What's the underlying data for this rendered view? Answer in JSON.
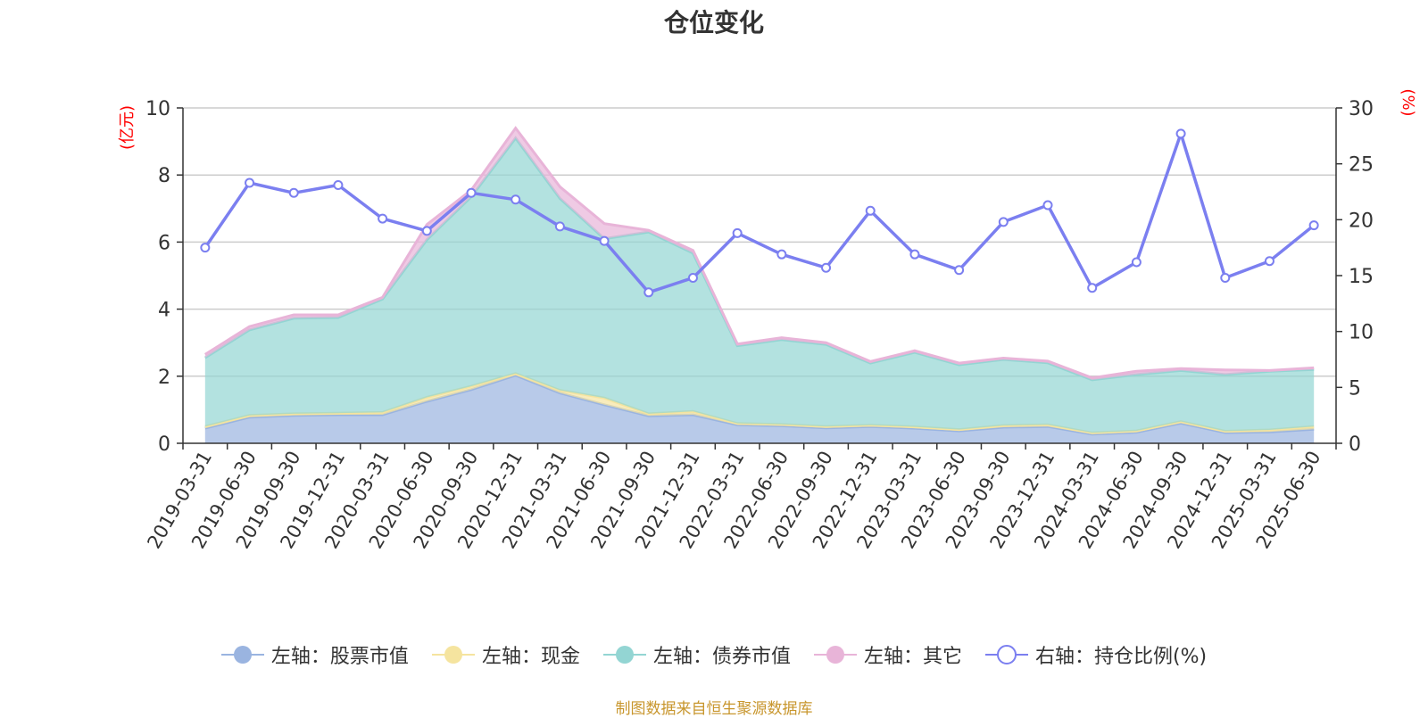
{
  "chart_data": {
    "type": "area",
    "title": "仓位变化",
    "left_axis_unit": "(亿元)",
    "right_axis_unit": "(%)",
    "ylim_left": [
      0,
      10
    ],
    "yticks_left": [
      0,
      2,
      4,
      6,
      8,
      10
    ],
    "ylim_right": [
      0,
      30
    ],
    "yticks_right": [
      0,
      5,
      10,
      15,
      20,
      25,
      30
    ],
    "grid": true,
    "legend_position": "bottom",
    "categories": [
      "2019-03-31",
      "2019-06-30",
      "2019-09-30",
      "2019-12-31",
      "2020-03-31",
      "2020-06-30",
      "2020-09-30",
      "2020-12-31",
      "2021-03-31",
      "2021-06-30",
      "2021-09-30",
      "2021-12-31",
      "2022-03-31",
      "2022-06-30",
      "2022-09-30",
      "2022-12-31",
      "2023-03-31",
      "2023-06-30",
      "2023-09-30",
      "2023-12-31",
      "2024-03-31",
      "2024-06-30",
      "2024-09-30",
      "2024-12-31",
      "2025-03-31",
      "2025-06-30"
    ],
    "series": [
      {
        "name": "左轴：股票市值",
        "axis": "left",
        "kind": "stacked-area",
        "color": "#9ab4e0",
        "values": [
          0.45,
          0.78,
          0.83,
          0.85,
          0.85,
          1.25,
          1.6,
          2.03,
          1.5,
          1.15,
          0.82,
          0.85,
          0.55,
          0.52,
          0.46,
          0.5,
          0.45,
          0.37,
          0.48,
          0.5,
          0.27,
          0.33,
          0.6,
          0.32,
          0.34,
          0.42
        ]
      },
      {
        "name": "左轴：现金",
        "axis": "left",
        "kind": "stacked-area",
        "color": "#f5e49f",
        "values": [
          0.05,
          0.05,
          0.05,
          0.05,
          0.07,
          0.12,
          0.1,
          0.05,
          0.08,
          0.2,
          0.06,
          0.1,
          0.04,
          0.04,
          0.04,
          0.04,
          0.04,
          0.04,
          0.05,
          0.05,
          0.04,
          0.04,
          0.05,
          0.04,
          0.06,
          0.08
        ]
      },
      {
        "name": "左轴：债券市值",
        "axis": "left",
        "kind": "stacked-area",
        "color": "#93d5d3",
        "values": [
          2.05,
          2.55,
          2.85,
          2.85,
          3.38,
          4.7,
          5.65,
          7.02,
          5.72,
          4.75,
          5.42,
          4.72,
          2.32,
          2.53,
          2.45,
          1.85,
          2.22,
          1.93,
          1.97,
          1.85,
          1.58,
          1.68,
          1.52,
          1.69,
          1.75,
          1.7
        ]
      },
      {
        "name": "左轴：其它",
        "axis": "left",
        "kind": "stacked-area",
        "color": "#e8b4d8",
        "values": [
          0.1,
          0.1,
          0.1,
          0.08,
          0.05,
          0.45,
          0.2,
          0.3,
          0.35,
          0.45,
          0.05,
          0.08,
          0.05,
          0.06,
          0.05,
          0.05,
          0.05,
          0.05,
          0.04,
          0.05,
          0.06,
          0.1,
          0.06,
          0.14,
          0.02,
          0.05
        ]
      },
      {
        "name": "右轴：持仓比例(%)",
        "axis": "right",
        "kind": "line",
        "color": "#7b7ff0",
        "values": [
          17.5,
          23.3,
          22.4,
          23.1,
          20.1,
          19.0,
          22.4,
          21.8,
          19.4,
          18.1,
          13.5,
          14.8,
          18.8,
          16.9,
          15.7,
          20.8,
          16.9,
          15.5,
          19.8,
          21.3,
          13.9,
          16.2,
          27.7,
          14.8,
          16.3,
          19.5
        ]
      }
    ],
    "source_note": "制图数据来自恒生聚源数据库"
  },
  "colors": {
    "title": "#333333",
    "axis_unit": "#ff0000",
    "grid": "#cccccc",
    "axis": "#333333",
    "source_note": "#c8962d"
  }
}
